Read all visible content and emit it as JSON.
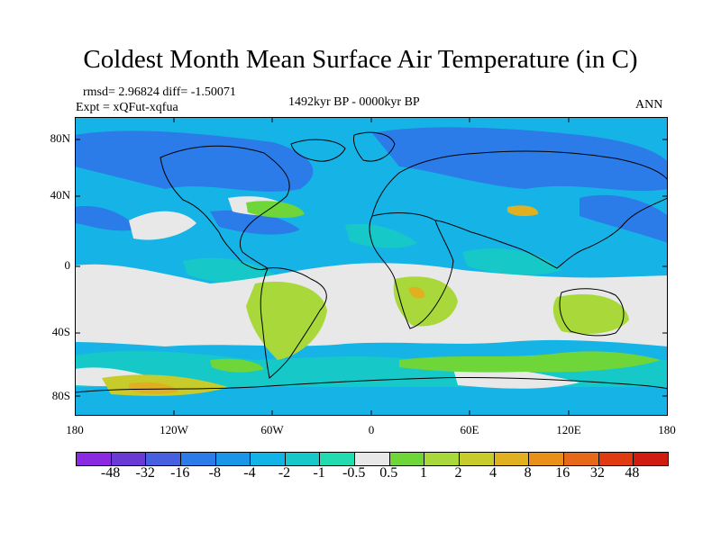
{
  "title": "Coldest Month Mean Surface Air Temperature (in C)",
  "stats": "rmsd= 2.96824 diff= -1.50071",
  "experiment": "Expt = xQFut-xqfua",
  "period": "1492kyr BP - 0000kyr BP",
  "season": "ANN",
  "y_axis_labels": [
    "80N",
    "40N",
    "0",
    "40S",
    "80S"
  ],
  "x_axis_labels": [
    "180",
    "120W",
    "60W",
    "0",
    "60E",
    "120E",
    "180"
  ],
  "colorbar": {
    "labels": [
      "-48",
      "-32",
      "-16",
      "-8",
      "-4",
      "-2",
      "-1",
      "-0.5",
      "0.5",
      "1",
      "2",
      "4",
      "8",
      "16",
      "32",
      "48"
    ],
    "colors": [
      "#8a2be2",
      "#6a3bd4",
      "#4660e0",
      "#2b7be8",
      "#1a96e8",
      "#12b4e8",
      "#16c8c8",
      "#22dcb0",
      "#e8e8e8",
      "#6fd63a",
      "#a8d83a",
      "#c8cc2a",
      "#e0b020",
      "#e89018",
      "#e8681a",
      "#e03a10",
      "#d01c10"
    ]
  }
}
